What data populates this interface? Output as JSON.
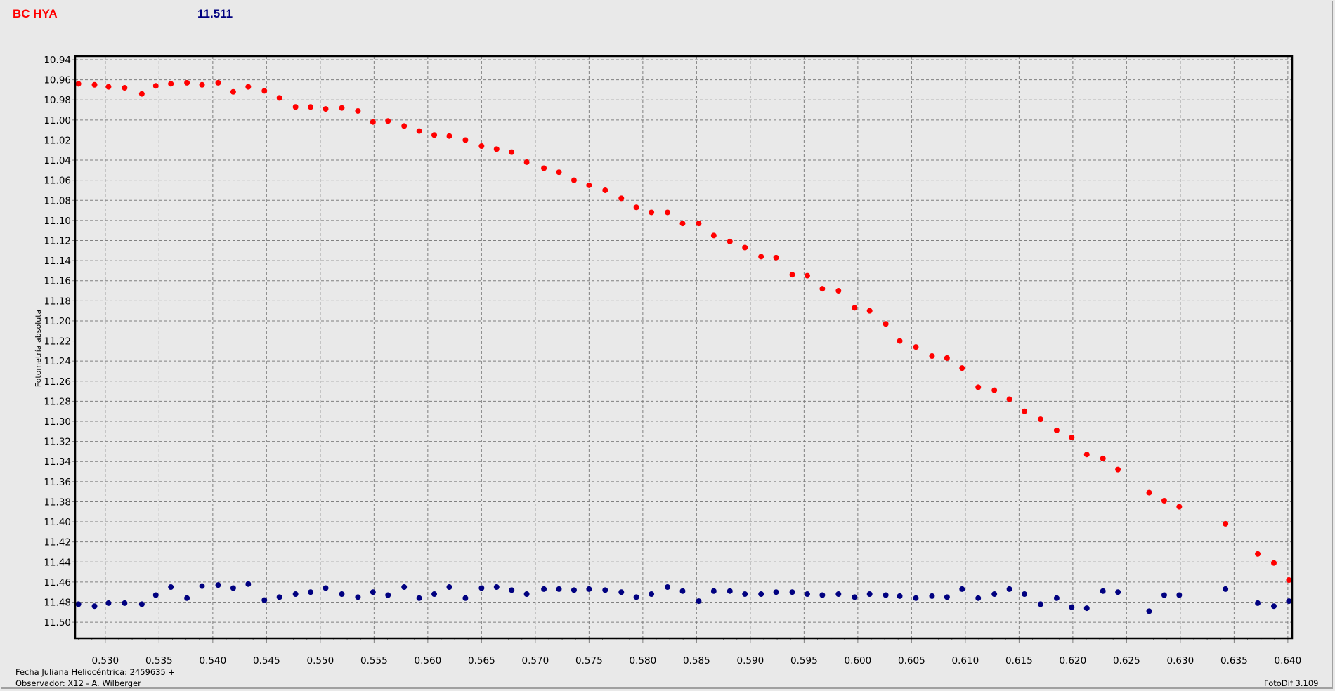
{
  "header": {
    "star_name": "BC HYA",
    "magnitude": "11.511"
  },
  "footer": {
    "jd_label": "Fecha Juliana Heliocéntrica: 2459635 +",
    "observer": "Observador: X12 - A. Wilberger",
    "software": "FotoDif 3.109"
  },
  "chart_data": {
    "type": "scatter",
    "title": "",
    "xlabel": "",
    "ylabel": "Fotometría absoluta",
    "xlim": [
      0.5272,
      0.6404
    ],
    "ylim": [
      11.516,
      10.9365
    ],
    "y_inverted": true,
    "grid": true,
    "x_ticks": [
      "0.530",
      "0.535",
      "0.540",
      "0.545",
      "0.550",
      "0.555",
      "0.560",
      "0.565",
      "0.570",
      "0.575",
      "0.580",
      "0.585",
      "0.590",
      "0.595",
      "0.600",
      "0.605",
      "0.610",
      "0.615",
      "0.620",
      "0.625",
      "0.630",
      "0.635",
      "0.640"
    ],
    "y_ticks": [
      "10.94",
      "10.96",
      "10.98",
      "11.00",
      "11.02",
      "11.04",
      "11.06",
      "11.08",
      "11.10",
      "11.12",
      "11.14",
      "11.16",
      "11.18",
      "11.20",
      "11.22",
      "11.24",
      "11.26",
      "11.28",
      "11.30",
      "11.32",
      "11.34",
      "11.36",
      "11.38",
      "11.40",
      "11.42",
      "11.44",
      "11.46",
      "11.48",
      "11.50"
    ],
    "x": [
      0.5275,
      0.529,
      0.5303,
      0.5318,
      0.5334,
      0.5347,
      0.5361,
      0.5376,
      0.539,
      0.5405,
      0.5419,
      0.5433,
      0.5448,
      0.5462,
      0.5477,
      0.5491,
      0.5505,
      0.552,
      0.5535,
      0.5549,
      0.5563,
      0.5578,
      0.5592,
      0.5606,
      0.562,
      0.5635,
      0.565,
      0.5664,
      0.5678,
      0.5692,
      0.5708,
      0.5722,
      0.5736,
      0.575,
      0.5765,
      0.578,
      0.5794,
      0.5808,
      0.5823,
      0.5837,
      0.5852,
      0.5866,
      0.5881,
      0.5895,
      0.591,
      0.5924,
      0.5939,
      0.5953,
      0.5967,
      0.5982,
      0.5997,
      0.6011,
      0.6026,
      0.6039,
      0.6054,
      0.6069,
      0.6083,
      0.6097,
      0.6112,
      0.6127,
      0.6141,
      0.6155,
      0.617,
      0.6185,
      0.6199,
      0.6213,
      0.6228,
      0.6242,
      0.6271,
      0.6285,
      0.6299,
      0.6342,
      0.6372,
      0.6387,
      0.6401
    ],
    "series": [
      {
        "color": "#ff0000",
        "values": [
          10.964,
          10.965,
          10.967,
          10.968,
          10.974,
          10.966,
          10.964,
          10.963,
          10.965,
          10.963,
          10.972,
          10.967,
          10.971,
          10.978,
          10.987,
          10.987,
          10.989,
          10.988,
          10.991,
          11.002,
          11.001,
          11.006,
          11.011,
          11.015,
          11.016,
          11.02,
          11.026,
          11.029,
          11.032,
          11.042,
          11.048,
          11.052,
          11.06,
          11.065,
          11.07,
          11.078,
          11.087,
          11.092,
          11.092,
          11.103,
          11.103,
          11.115,
          11.121,
          11.127,
          11.136,
          11.137,
          11.154,
          11.155,
          11.168,
          11.17,
          11.187,
          11.19,
          11.203,
          11.22,
          11.226,
          11.235,
          11.237,
          11.247,
          11.266,
          11.269,
          11.278,
          11.29,
          11.298,
          11.309,
          11.316,
          11.333,
          11.337,
          11.348,
          11.371,
          11.379,
          11.385,
          11.402,
          11.432,
          11.441,
          11.458
        ]
      },
      {
        "color": "#000080",
        "values": [
          11.482,
          11.484,
          11.481,
          11.481,
          11.482,
          11.473,
          11.465,
          11.476,
          11.464,
          11.463,
          11.466,
          11.462,
          11.478,
          11.475,
          11.472,
          11.47,
          11.466,
          11.472,
          11.475,
          11.47,
          11.473,
          11.465,
          11.476,
          11.472,
          11.465,
          11.476,
          11.466,
          11.465,
          11.468,
          11.472,
          11.467,
          11.467,
          11.468,
          11.467,
          11.468,
          11.47,
          11.475,
          11.472,
          11.465,
          11.469,
          11.479,
          11.469,
          11.469,
          11.472,
          11.472,
          11.47,
          11.47,
          11.472,
          11.473,
          11.472,
          11.475,
          11.472,
          11.473,
          11.474,
          11.476,
          11.474,
          11.475,
          11.467,
          11.476,
          11.472,
          11.467,
          11.472,
          11.482,
          11.476,
          11.485,
          11.486,
          11.469,
          11.47,
          11.489,
          11.473,
          11.473,
          11.467,
          11.481,
          11.484,
          11.479
        ]
      }
    ]
  }
}
